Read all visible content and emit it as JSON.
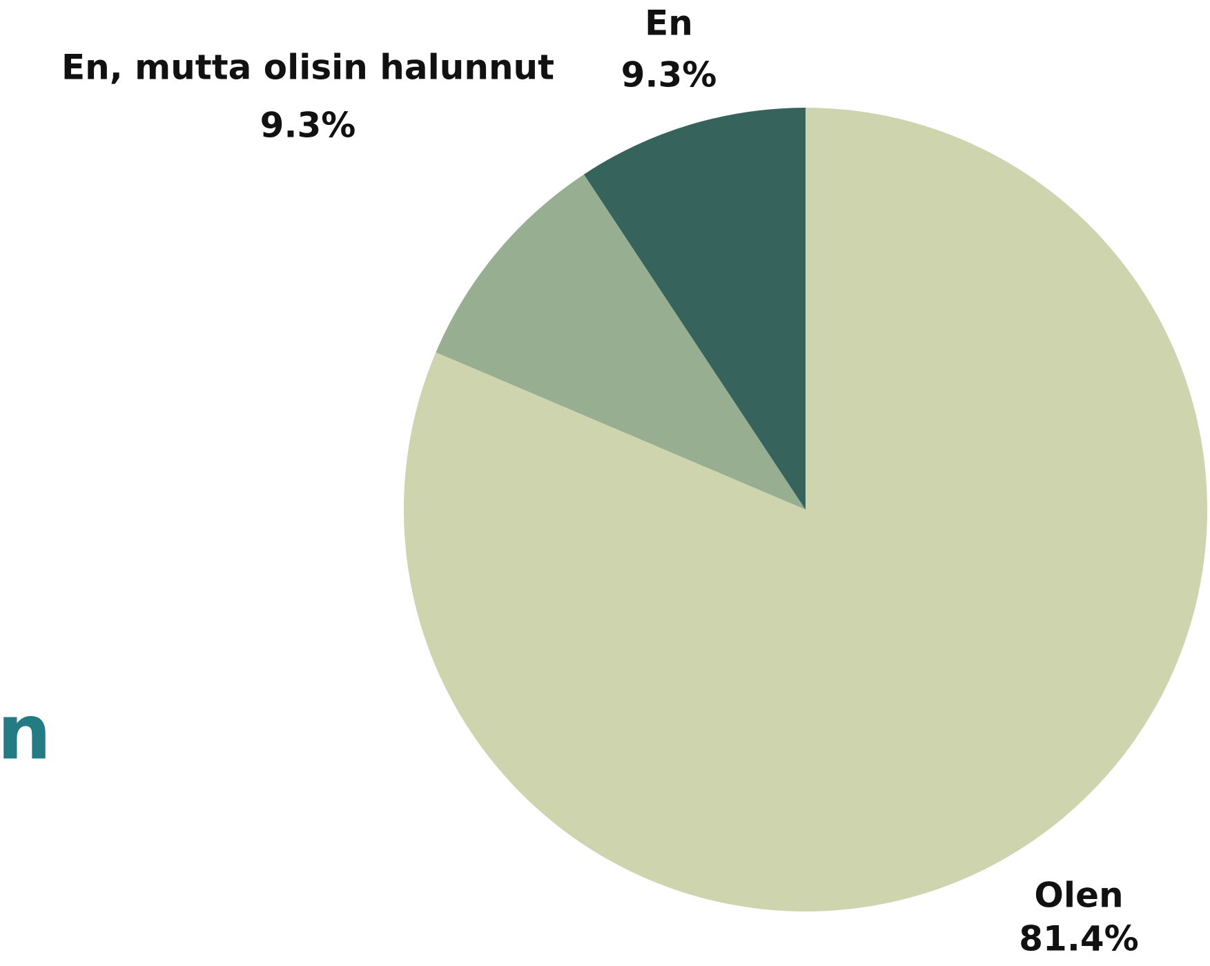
{
  "fragment_text": "n",
  "chart_data": {
    "type": "pie",
    "categories": [
      "Olen",
      "En, mutta olisin halunnut",
      "En"
    ],
    "values": [
      81.4,
      9.3,
      9.3
    ],
    "value_labels": [
      "81.4%",
      "9.3%",
      "9.3%"
    ],
    "colors": [
      "#cdd4ae",
      "#97ae90",
      "#36645c"
    ],
    "start_angle": 90,
    "direction": "clockwise"
  }
}
